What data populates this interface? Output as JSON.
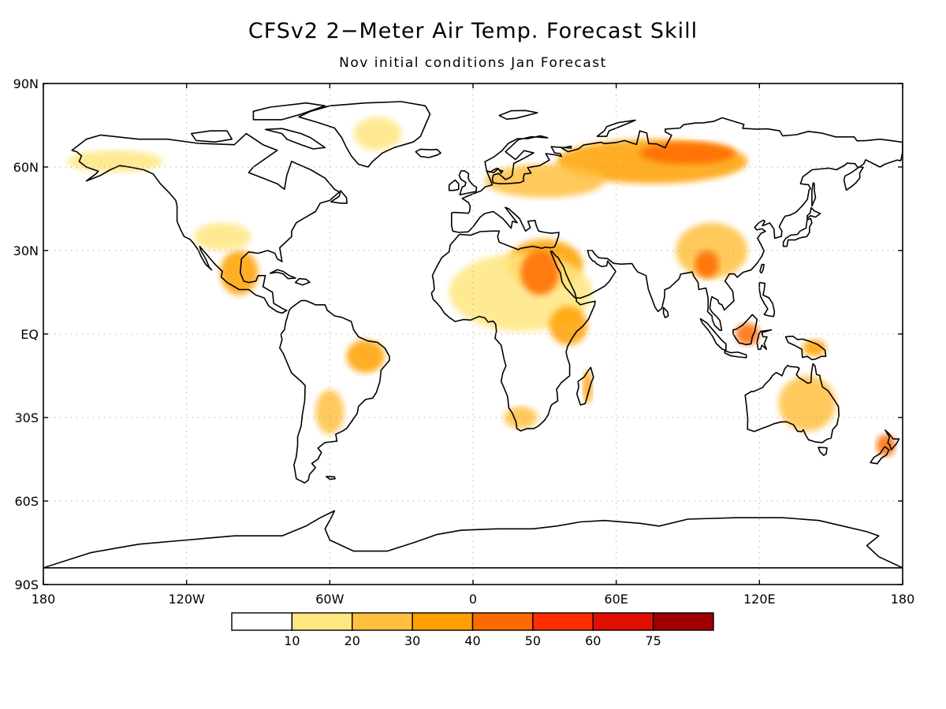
{
  "title": "CFSv2 2−Meter Air Temp. Forecast Skill",
  "subtitle": "Nov initial conditions   Jan Forecast",
  "map": {
    "lat_labels": [
      "90N",
      "60N",
      "30N",
      "EQ",
      "30S",
      "60S",
      "90S"
    ],
    "lon_labels": [
      "180",
      "120W",
      "60W",
      "0",
      "60E",
      "120E",
      "180"
    ],
    "gridlines": "dotted",
    "projection": "cylindrical equidistant",
    "lon_range": [
      -180,
      180
    ],
    "lat_range": [
      -90,
      90
    ]
  },
  "legend": {
    "bins": [
      {
        "color": "#ffffff"
      },
      {
        "color": "#ffe680"
      },
      {
        "color": "#ffc040"
      },
      {
        "color": "#ffa000"
      },
      {
        "color": "#ff6a00"
      },
      {
        "color": "#ff3000"
      },
      {
        "color": "#e01000"
      },
      {
        "color": "#a00000"
      }
    ],
    "labels": [
      "10",
      "20",
      "30",
      "40",
      "50",
      "60",
      "75"
    ]
  },
  "skill_regions": [
    {
      "lon": 30,
      "lat": 25,
      "rx": 16,
      "ry": 9,
      "level": 3
    },
    {
      "lon": 20,
      "lat": 15,
      "rx": 30,
      "ry": 14,
      "level": 1
    },
    {
      "lon": 28,
      "lat": 22,
      "rx": 8,
      "ry": 8,
      "level": 4
    },
    {
      "lon": 40,
      "lat": 3,
      "rx": 8,
      "ry": 7,
      "level": 3
    },
    {
      "lon": 75,
      "lat": 62,
      "rx": 40,
      "ry": 8,
      "level": 3
    },
    {
      "lon": 90,
      "lat": 65,
      "rx": 20,
      "ry": 4,
      "level": 4
    },
    {
      "lon": 30,
      "lat": 55,
      "rx": 25,
      "ry": 6,
      "level": 2
    },
    {
      "lon": 100,
      "lat": 30,
      "rx": 15,
      "ry": 10,
      "level": 2
    },
    {
      "lon": 98,
      "lat": 25,
      "rx": 5,
      "ry": 5,
      "level": 4
    },
    {
      "lon": 115,
      "lat": 0,
      "rx": 5,
      "ry": 4,
      "level": 4
    },
    {
      "lon": 143,
      "lat": -5,
      "rx": 5,
      "ry": 3,
      "level": 3
    },
    {
      "lon": 140,
      "lat": -25,
      "rx": 12,
      "ry": 10,
      "level": 2
    },
    {
      "lon": 173,
      "lat": -40,
      "rx": 4,
      "ry": 4,
      "level": 4
    },
    {
      "lon": -45,
      "lat": -8,
      "rx": 8,
      "ry": 6,
      "level": 3
    },
    {
      "lon": -60,
      "lat": -28,
      "rx": 6,
      "ry": 8,
      "level": 2
    },
    {
      "lon": -98,
      "lat": 22,
      "rx": 8,
      "ry": 8,
      "level": 3
    },
    {
      "lon": -105,
      "lat": 35,
      "rx": 12,
      "ry": 5,
      "level": 1
    },
    {
      "lon": -150,
      "lat": 62,
      "rx": 20,
      "ry": 4,
      "level": 1
    },
    {
      "lon": -40,
      "lat": 72,
      "rx": 10,
      "ry": 6,
      "level": 1
    },
    {
      "lon": 48,
      "lat": -19,
      "rx": 2,
      "ry": 6,
      "level": 3
    },
    {
      "lon": 20,
      "lat": -30,
      "rx": 7,
      "ry": 4,
      "level": 2
    }
  ]
}
